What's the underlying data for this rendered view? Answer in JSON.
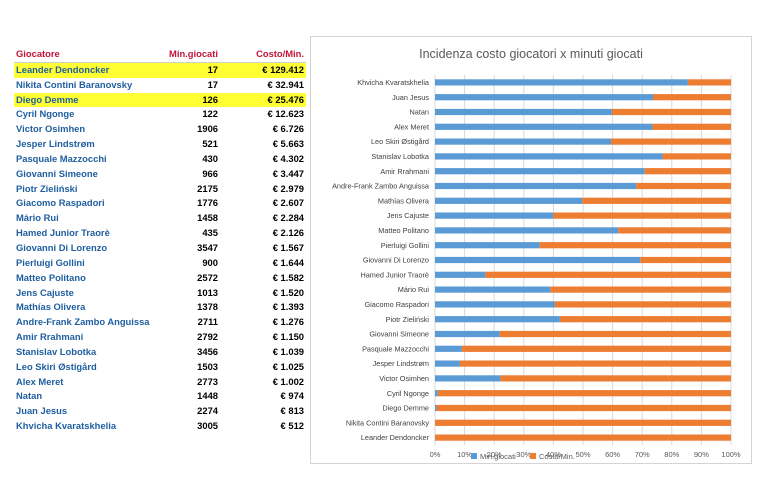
{
  "table": {
    "headers": [
      "Giocatore",
      "Min.giocati",
      "Costo/Min."
    ],
    "highlight_color": "#ffff33",
    "rows": [
      {
        "name": "Leander Dendoncker",
        "minutes": "17",
        "cost": "€ 129.412",
        "highlight": true
      },
      {
        "name": "Nikita Contini Baranovsky",
        "minutes": "17",
        "cost": "€ 32.941",
        "highlight": false
      },
      {
        "name": "Diego Demme",
        "minutes": "126",
        "cost": "€ 25.476",
        "highlight": true
      },
      {
        "name": "Cyril Ngonge",
        "minutes": "122",
        "cost": "€ 12.623",
        "highlight": false
      },
      {
        "name": "Victor Osimhen",
        "minutes": "1906",
        "cost": "€ 6.726",
        "highlight": false
      },
      {
        "name": "Jesper Lindstrøm",
        "minutes": "521",
        "cost": "€ 5.663",
        "highlight": false
      },
      {
        "name": "Pasquale Mazzocchi",
        "minutes": "430",
        "cost": "€ 4.302",
        "highlight": false
      },
      {
        "name": "Giovanni Simeone",
        "minutes": "966",
        "cost": "€ 3.447",
        "highlight": false
      },
      {
        "name": "Piotr Zieliński",
        "minutes": "2175",
        "cost": "€ 2.979",
        "highlight": false
      },
      {
        "name": "Giacomo Raspadori",
        "minutes": "1776",
        "cost": "€ 2.607",
        "highlight": false
      },
      {
        "name": "Mário Rui",
        "minutes": "1458",
        "cost": "€ 2.284",
        "highlight": false
      },
      {
        "name": "Hamed Junior Traorè",
        "minutes": "435",
        "cost": "€ 2.126",
        "highlight": false
      },
      {
        "name": "Giovanni Di Lorenzo",
        "minutes": "3547",
        "cost": "€ 1.567",
        "highlight": false
      },
      {
        "name": "Pierluigi Gollini",
        "minutes": "900",
        "cost": "€ 1.644",
        "highlight": false
      },
      {
        "name": "Matteo Politano",
        "minutes": "2572",
        "cost": "€ 1.582",
        "highlight": false
      },
      {
        "name": "Jens Cajuste",
        "minutes": "1013",
        "cost": "€ 1.520",
        "highlight": false
      },
      {
        "name": "Mathías Olivera",
        "minutes": "1378",
        "cost": "€ 1.393",
        "highlight": false
      },
      {
        "name": "Andre-Frank Zambo Anguissa",
        "minutes": "2711",
        "cost": "€ 1.276",
        "highlight": false
      },
      {
        "name": "Amir Rrahmani",
        "minutes": "2792",
        "cost": "€ 1.150",
        "highlight": false
      },
      {
        "name": "Stanislav Lobotka",
        "minutes": "3456",
        "cost": "€ 1.039",
        "highlight": false
      },
      {
        "name": "Leo Skiri Østigård",
        "minutes": "1503",
        "cost": "€ 1.025",
        "highlight": false
      },
      {
        "name": "Alex Meret",
        "minutes": "2773",
        "cost": "€ 1.002",
        "highlight": false
      },
      {
        "name": "Natan",
        "minutes": "1448",
        "cost": "€ 974",
        "highlight": false
      },
      {
        "name": "Juan Jesus",
        "minutes": "2274",
        "cost": "€ 813",
        "highlight": false
      },
      {
        "name": "Khvicha Kvaratskhelia",
        "minutes": "3005",
        "cost": "€ 512",
        "highlight": false
      }
    ]
  },
  "chart_data": {
    "type": "bar",
    "orientation": "horizontal",
    "stacked": "percent",
    "title": "Incidenza costo giocatori x minuti giocati",
    "categories": [
      "Khvicha Kvaratskhelia",
      "Juan Jesus",
      "Natan",
      "Alex Meret",
      "Leo Skiri Østigård",
      "Stanislav Lobotka",
      "Amir Rrahmani",
      "Andre-Frank Zambo Anguissa",
      "Mathías Olivera",
      "Jens Cajuste",
      "Matteo Politano",
      "Pierluigi Gollini",
      "Giovanni Di Lorenzo",
      "Hamed Junior Traorè",
      "Mário Rui",
      "Giacomo Raspadori",
      "Piotr Zieliński",
      "Giovanni Simeone",
      "Pasquale Mazzocchi",
      "Jesper Lindstrøm",
      "Victor Osimhen",
      "Cyril Ngonge",
      "Diego Demme",
      "Nikita Contini Baranovsky",
      "Leander Dendoncker"
    ],
    "series": [
      {
        "name": "Min.giocati",
        "color": "#5b9bd5",
        "values": [
          3005,
          2274,
          1448,
          2773,
          1503,
          3456,
          2792,
          2711,
          1378,
          1013,
          2572,
          900,
          3547,
          435,
          1458,
          1776,
          2175,
          966,
          430,
          521,
          1906,
          122,
          126,
          17,
          17
        ]
      },
      {
        "name": "Costo/Min.",
        "color": "#ed7d31",
        "values": [
          512,
          813,
          974,
          1002,
          1025,
          1039,
          1150,
          1276,
          1393,
          1520,
          1582,
          1644,
          1567,
          2126,
          2284,
          2607,
          2979,
          3447,
          4302,
          5663,
          6726,
          12623,
          25476,
          32941,
          129412
        ]
      }
    ],
    "xticks": [
      "0%",
      "10%",
      "20%",
      "30%",
      "40%",
      "50%",
      "60%",
      "70%",
      "80%",
      "90%",
      "100%"
    ],
    "xlim": [
      0,
      100
    ],
    "grid": true,
    "legend_position": "bottom"
  }
}
